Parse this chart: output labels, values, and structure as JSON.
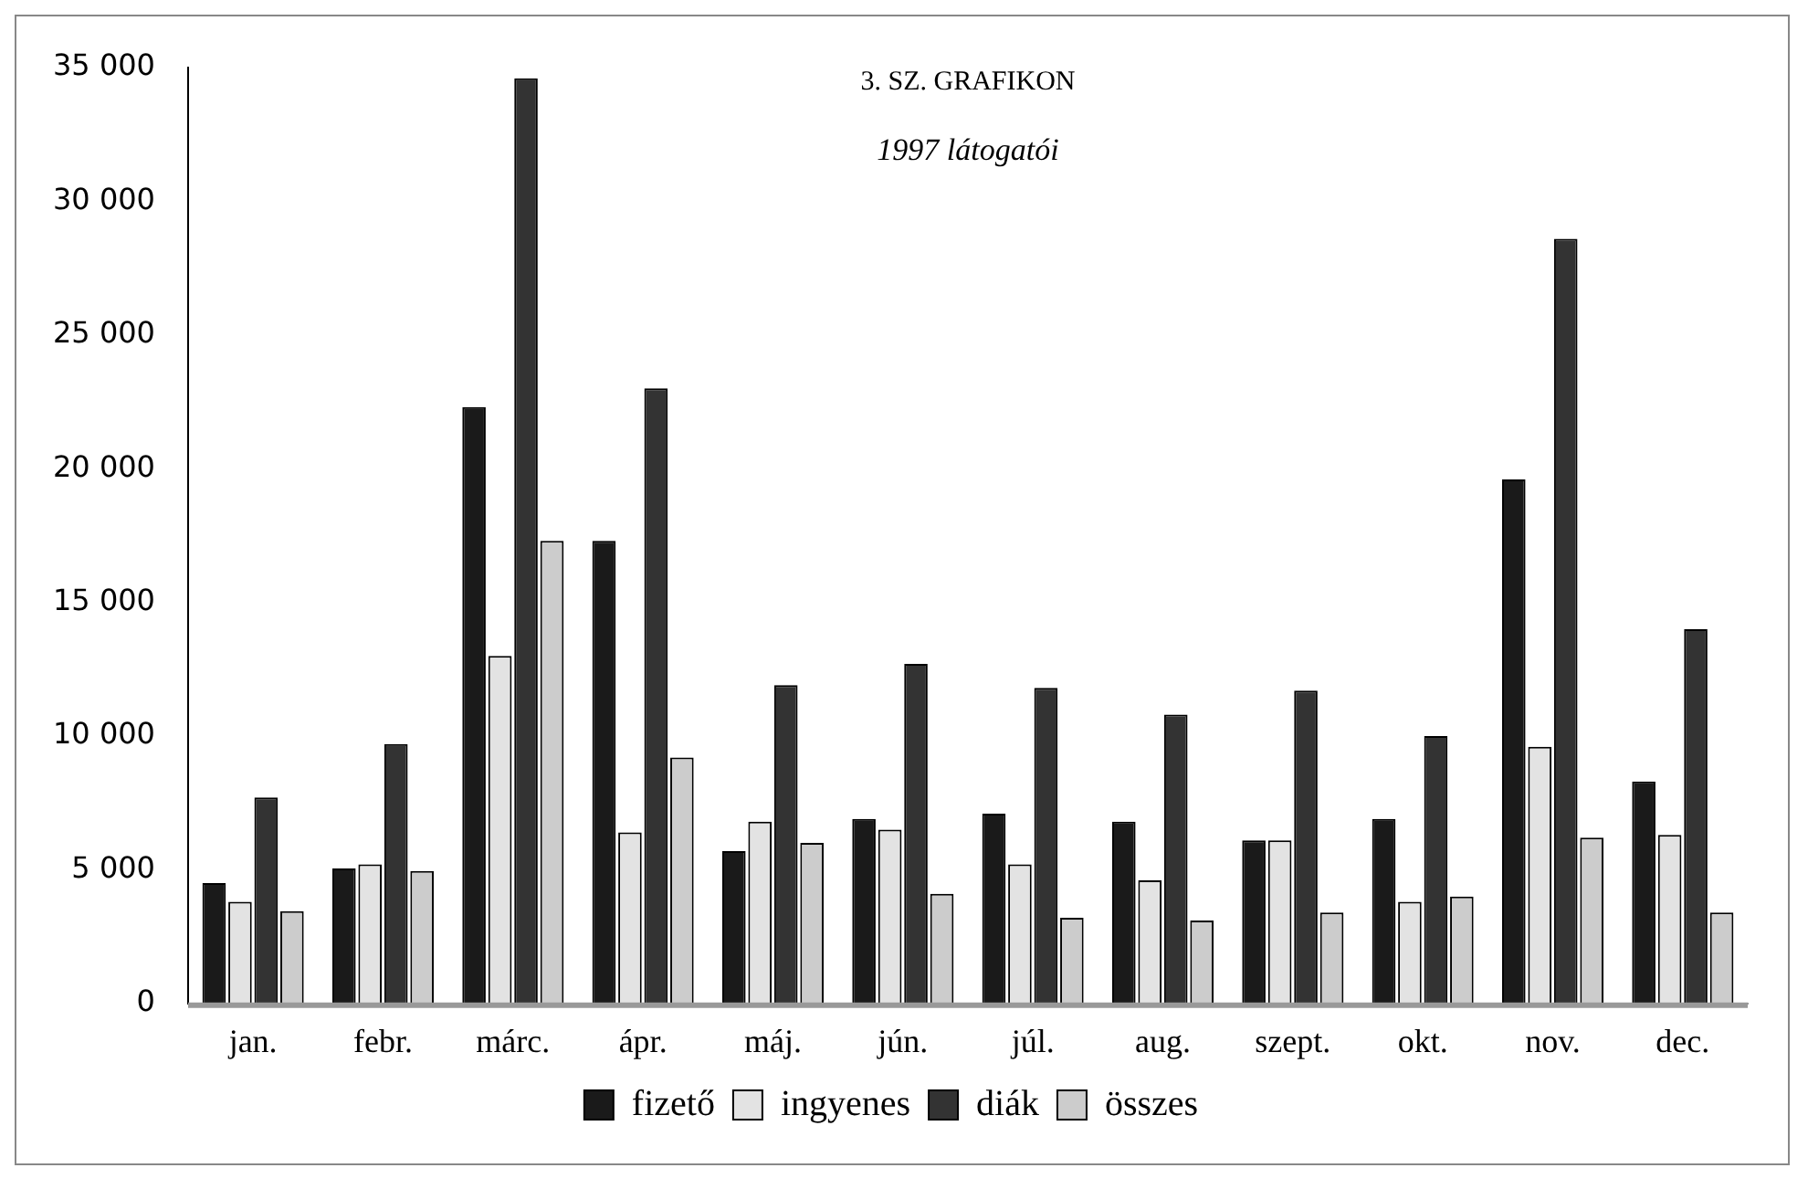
{
  "chart_data": {
    "type": "bar",
    "title": "3. SZ. GRAFIKON",
    "subtitle": "1997 látogatói",
    "categories": [
      "jan.",
      "febr.",
      "márc.",
      "ápr.",
      "máj.",
      "jún.",
      "júl.",
      "aug.",
      "szept.",
      "okt.",
      "nov.",
      "dec."
    ],
    "series": [
      {
        "name": "fizető",
        "color": "#1a1a1a",
        "values": [
          4500,
          5050,
          22300,
          17300,
          5700,
          6900,
          7100,
          6800,
          6100,
          6900,
          19600,
          8300
        ]
      },
      {
        "name": "ingyenes",
        "color": "#e3e3e3",
        "values": [
          3800,
          5200,
          13000,
          6400,
          6800,
          6500,
          5200,
          4600,
          6100,
          3800,
          9600,
          6300
        ]
      },
      {
        "name": "diák",
        "color": "#333333",
        "values": [
          7700,
          9700,
          34600,
          23000,
          11900,
          12700,
          11800,
          10800,
          11700,
          10000,
          28600,
          14000
        ]
      },
      {
        "name": "összes",
        "color": "#cccccc",
        "values": [
          3450,
          4950,
          17300,
          9200,
          6000,
          4100,
          3200,
          3100,
          3400,
          4000,
          6200,
          3400
        ]
      }
    ],
    "ylim": [
      0,
      35000
    ],
    "yticks": [
      {
        "value": 0,
        "label": "0"
      },
      {
        "value": 5000,
        "label": "5 000"
      },
      {
        "value": 10000,
        "label": "10 000"
      },
      {
        "value": 15000,
        "label": "15 000"
      },
      {
        "value": 20000,
        "label": "20 000"
      },
      {
        "value": 25000,
        "label": "25 000"
      },
      {
        "value": 30000,
        "label": "30 000"
      },
      {
        "value": 35000,
        "label": "35 000"
      }
    ],
    "grid": false,
    "legend": "bottom"
  }
}
